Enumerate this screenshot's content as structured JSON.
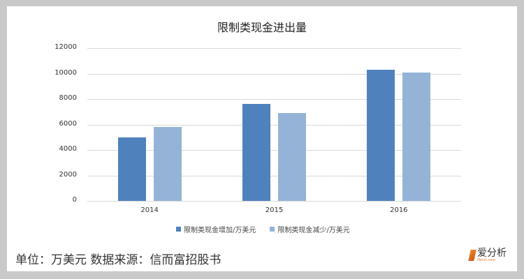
{
  "title": "限制类现金进出量",
  "footer": "单位：万美元 数据来源：信而富招股书",
  "logo": {
    "text": "爱分析",
    "sub": "ifenxi.com"
  },
  "colors": {
    "series1": "#4f81bd",
    "series2": "#95b3d7",
    "grid": "#d9d9d9",
    "background": "#c9c9c9"
  },
  "chart_data": {
    "type": "bar",
    "title": "限制类现金进出量",
    "categories": [
      "2014",
      "2015",
      "2016"
    ],
    "series": [
      {
        "name": "限制类现金增加/万美元",
        "values": [
          5000,
          7600,
          10300
        ]
      },
      {
        "name": "限制类现金减少/万美元",
        "values": [
          5800,
          6900,
          10100
        ]
      }
    ],
    "xlabel": "",
    "ylabel": "",
    "ylim": [
      0,
      12000
    ],
    "yticks": [
      0,
      2000,
      4000,
      6000,
      8000,
      10000,
      12000
    ],
    "grid": true,
    "legend_position": "bottom"
  }
}
